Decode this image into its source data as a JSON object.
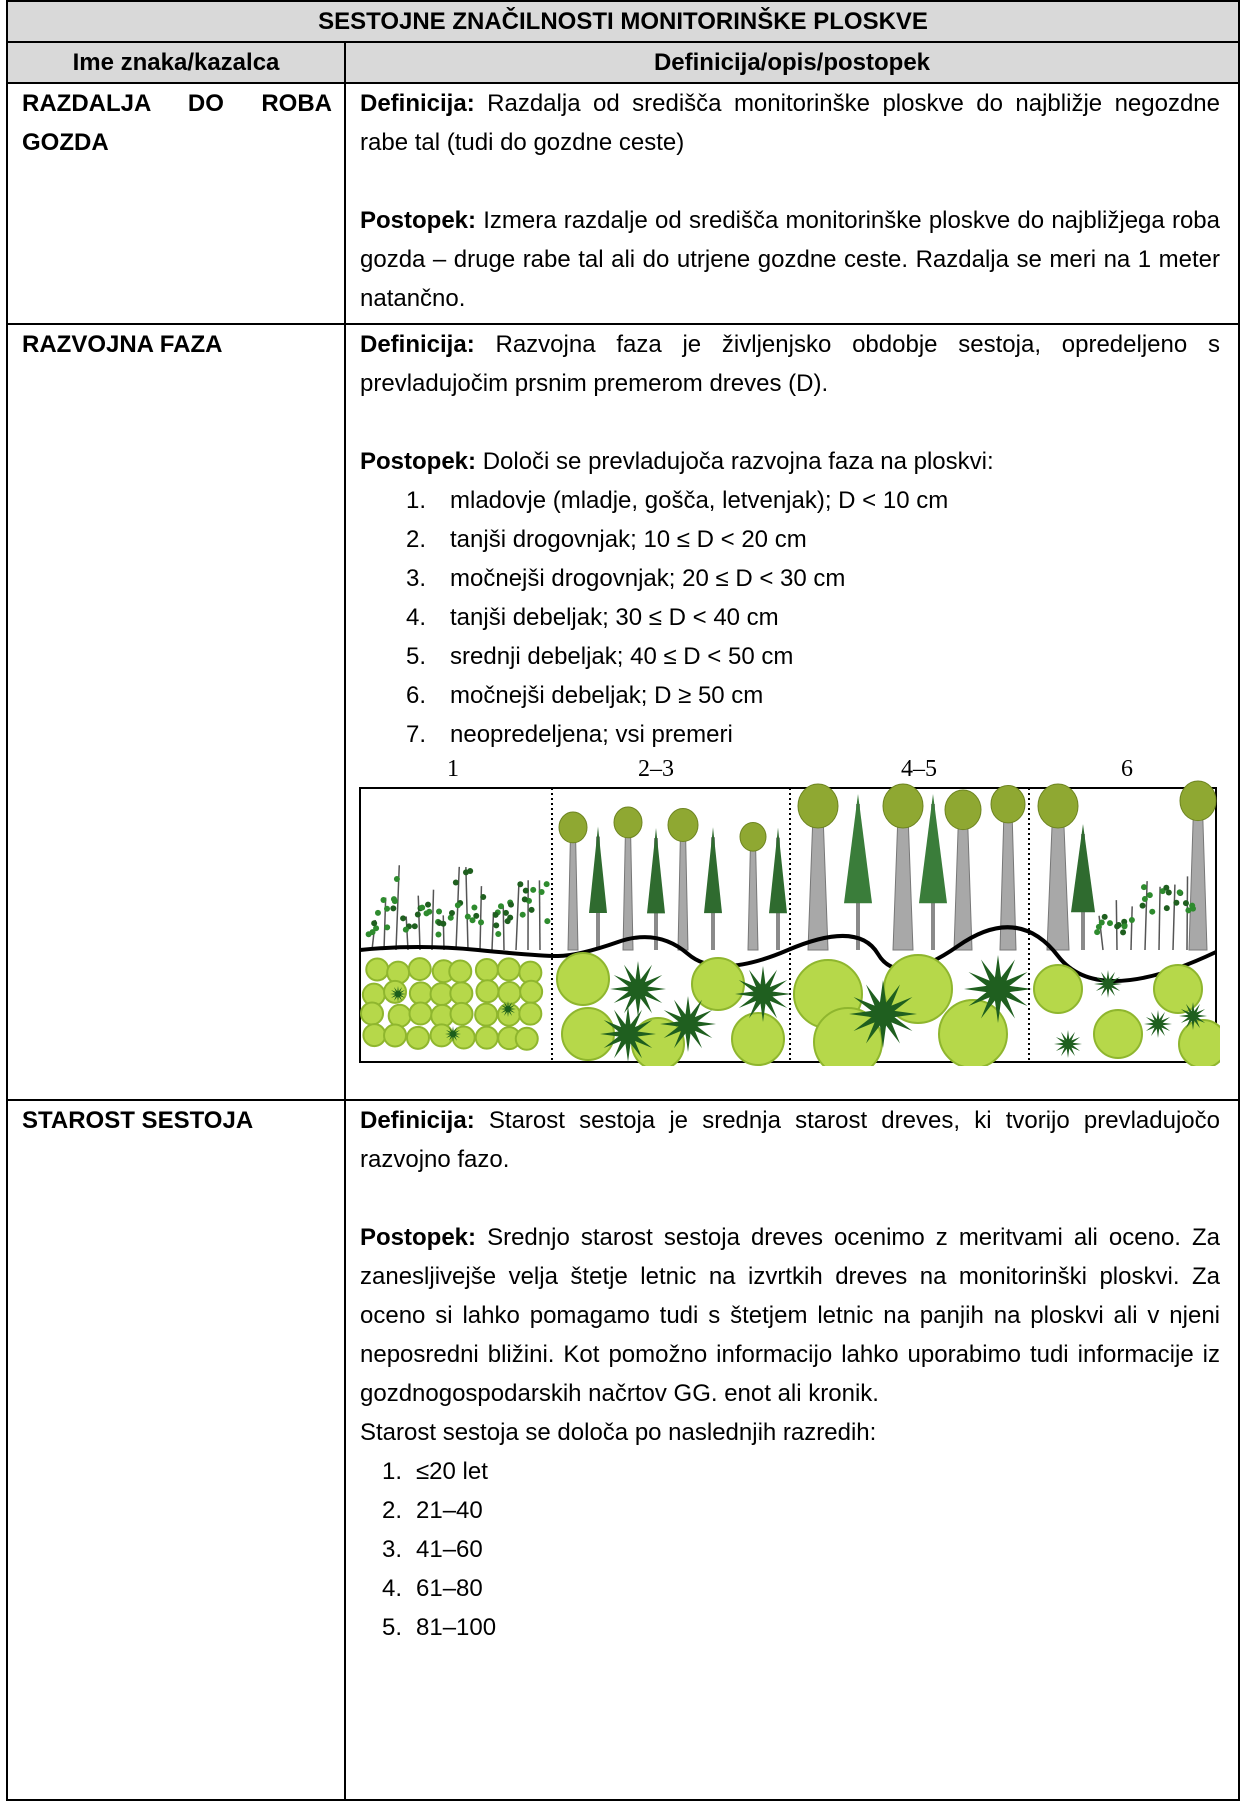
{
  "table": {
    "title": "SESTOJNE ZNAČILNOSTI MONITORINŠKE PLOSKVE",
    "headers": [
      "Ime znaka/kazalca",
      "Definicija/opis/postopek"
    ],
    "rows": [
      {
        "name": "RAZDALJA DO ROBA GOZDA",
        "definition_label": "Definicija:",
        "definition": "Razdalja od središča monitorinške ploskve do najbližje negozdne rabe tal (tudi do gozdne ceste)",
        "procedure_label": "Postopek:",
        "procedure": "Izmera razdalje od središča monitorinške ploskve do najbližjega roba gozda – druge rabe tal ali do utrjene gozdne ceste. Razdalja se meri na 1 meter natančno."
      },
      {
        "name": "RAZVOJNA FAZA",
        "definition_label": "Definicija:",
        "definition": "Razvojna faza je življenjsko obdobje sestoja, opredeljeno s prevladujočim prsnim premerom dreves (D).",
        "procedure_label": "Postopek:",
        "procedure": "Določi se prevladujoča razvojna faza na ploskvi:",
        "list": [
          {
            "number": "1.",
            "text": "mladovje (mladje, gošča, letvenjak); D < 10 cm"
          },
          {
            "number": "2.",
            "text": "tanjši drogovnjak; 10 ≤ D < 20 cm"
          },
          {
            "number": "3.",
            "text": "močnejši drogovnjak; 20 ≤ D < 30 cm"
          },
          {
            "number": "4.",
            "text": "tanjši debeljak; 30 ≤ D < 40 cm"
          },
          {
            "number": "5.",
            "text": "srednji debeljak; 40 ≤ D < 50 cm"
          },
          {
            "number": "6.",
            "text": "močnejši debeljak; D ≥ 50 cm"
          },
          {
            "number": "7.",
            "text": "neopredeljena; vsi premeri"
          }
        ],
        "figure_labels": [
          "1",
          "2–3",
          "4–5",
          "6"
        ]
      },
      {
        "name": "STAROST SESTOJA",
        "definition_label": "Definicija:",
        "definition": "Starost sestoja je srednja starost dreves, ki tvorijo prevladujočo razvojno fazo.",
        "procedure_label": "Postopek:",
        "procedure": "Srednjo starost sestoja dreves ocenimo z meritvami ali oceno. Za zanesljivejše velja štetje letnic na izvrtkih dreves na monitorinški ploskvi. Za oceno si lahko pomagamo tudi s štetjem letnic na panjih na ploskvi ali v njeni neposredni bližini. Kot pomožno informacijo lahko uporabimo tudi informacije iz gozdnogospodarskih načrtov GG. enot ali kronik.",
        "note": "Starost sestoja se določa po naslednjih razredih:",
        "list": [
          {
            "number": "1.",
            "text": "≤20 let"
          },
          {
            "number": "2.",
            "text": "21–40"
          },
          {
            "number": "3.",
            "text": "41–60"
          },
          {
            "number": "4.",
            "text": "61–80"
          },
          {
            "number": "5.",
            "text": "81–100"
          }
        ]
      }
    ]
  }
}
